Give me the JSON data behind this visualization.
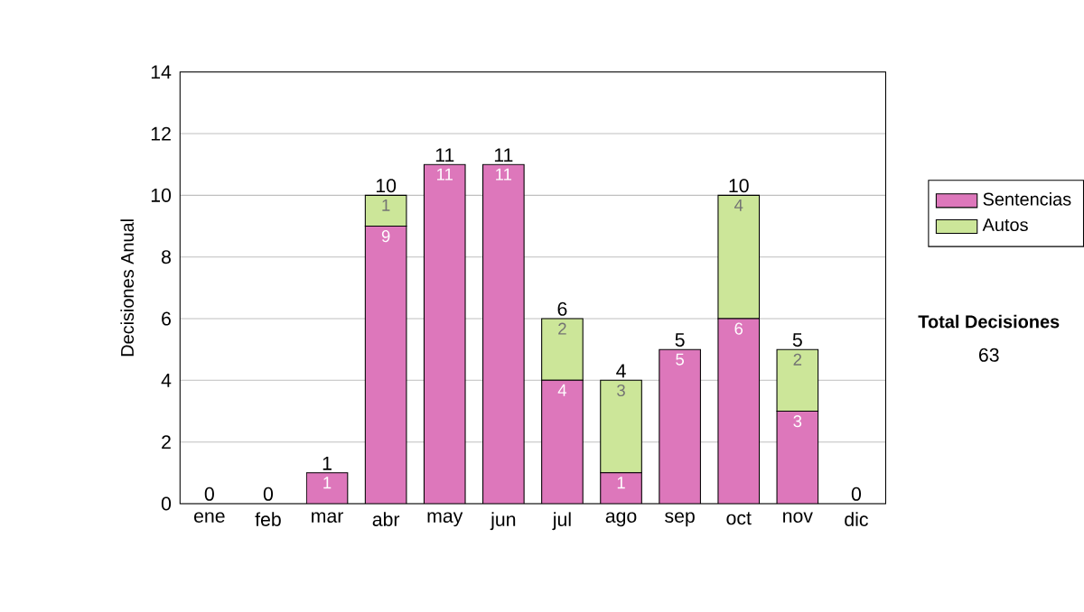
{
  "chart_data": {
    "type": "bar",
    "stacked": true,
    "ylabel": "Decisiones Anual",
    "categories": [
      "ene",
      "feb",
      "mar",
      "abr",
      "may",
      "jun",
      "jul",
      "ago",
      "sep",
      "oct",
      "nov",
      "dic"
    ],
    "series": [
      {
        "name": "Sentencias",
        "color": "#dd77bb",
        "values": [
          0,
          0,
          1,
          9,
          11,
          11,
          4,
          1,
          5,
          6,
          3,
          0
        ],
        "value_labels": [
          null,
          null,
          "1",
          "9",
          "11",
          "11",
          "4",
          "1",
          "5",
          "6",
          "3",
          null
        ]
      },
      {
        "name": "Autos",
        "color": "#cce699",
        "values": [
          0,
          0,
          0,
          1,
          0,
          0,
          2,
          3,
          0,
          4,
          2,
          0
        ],
        "value_labels": [
          null,
          null,
          null,
          "1",
          null,
          null,
          "2",
          "3",
          null,
          "4",
          "2",
          null
        ]
      }
    ],
    "totals": [
      "0",
      "0",
      "1",
      "10",
      "11",
      "11",
      "6",
      "4",
      "5",
      "10",
      "5",
      "0"
    ],
    "ylim": [
      0,
      14
    ],
    "yticks": [
      0,
      2,
      4,
      6,
      8,
      10,
      12,
      14
    ],
    "grid": "y",
    "legend": "right",
    "annotations": [
      "Total Decisiones",
      "63"
    ]
  }
}
